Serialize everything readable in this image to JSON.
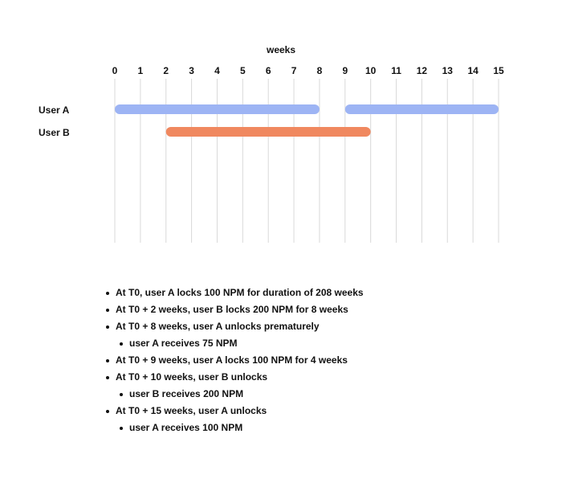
{
  "chart_data": {
    "type": "gantt",
    "xlabel": "weeks",
    "x_ticks": [
      0,
      1,
      2,
      3,
      4,
      5,
      6,
      7,
      8,
      9,
      10,
      11,
      12,
      13,
      14,
      15
    ],
    "xlim": [
      0,
      15
    ],
    "grid": true,
    "rows": [
      {
        "label": "User A",
        "color": "#9db4f4",
        "intervals": [
          {
            "start": 0,
            "end": 8
          },
          {
            "start": 9,
            "end": 15
          }
        ]
      },
      {
        "label": "User B",
        "color": "#f0885f",
        "intervals": [
          {
            "start": 2,
            "end": 10
          }
        ]
      }
    ]
  },
  "notes": [
    {
      "level": 0,
      "text": "At T0, user A locks 100 NPM for duration of 208 weeks"
    },
    {
      "level": 0,
      "text": "At T0 + 2 weeks, user B locks 200 NPM for 8 weeks"
    },
    {
      "level": 0,
      "text": "At T0 + 8 weeks, user A unlocks prematurely"
    },
    {
      "level": 1,
      "text": "user A receives 75 NPM"
    },
    {
      "level": 0,
      "text": "At T0 + 9 weeks, user A locks 100 NPM for 4 weeks"
    },
    {
      "level": 0,
      "text": "At T0 + 10 weeks, user B unlocks"
    },
    {
      "level": 1,
      "text": "user B receives 200 NPM"
    },
    {
      "level": 0,
      "text": "At T0 + 15 weeks, user A unlocks"
    },
    {
      "level": 1,
      "text": "user A receives 100 NPM"
    }
  ]
}
